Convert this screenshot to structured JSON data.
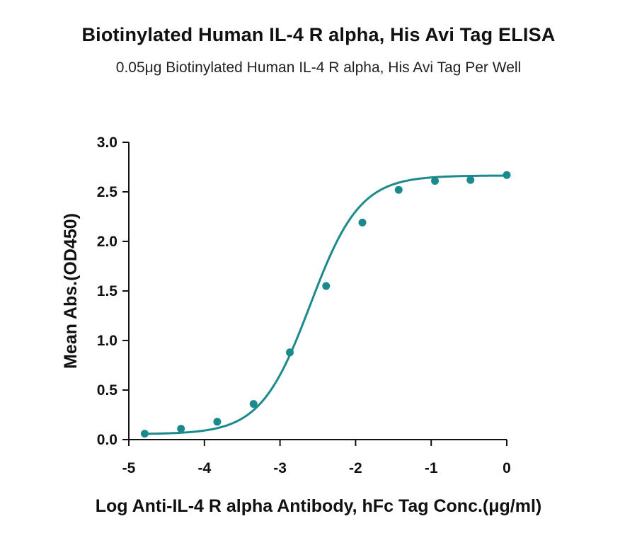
{
  "chart_data": {
    "type": "scatter",
    "title": "Biotinylated Human IL-4 R alpha, His Avi Tag ELISA",
    "subtitle": "0.05μg Biotinylated Human IL-4 R alpha, His Avi Tag Per Well",
    "xlabel": "Log Anti-IL-4 R alpha Antibody, hFc Tag Conc.(μg/ml)",
    "ylabel": "Mean Abs.(OD450)",
    "xlim": [
      -5,
      0
    ],
    "ylim": [
      0,
      3.0
    ],
    "x_ticks": [
      "-5",
      "-4",
      "-3",
      "-2",
      "-1",
      "0"
    ],
    "y_ticks": [
      "0.0",
      "0.5",
      "1.0",
      "1.5",
      "2.0",
      "2.5",
      "3.0"
    ],
    "x_tick_values": [
      -5,
      -4,
      -3,
      -2,
      -1,
      0
    ],
    "y_tick_values": [
      0,
      0.5,
      1.0,
      1.5,
      2.0,
      2.5,
      3.0
    ],
    "series": [
      {
        "x": [
          -4.79,
          -4.31,
          -3.83,
          -3.35,
          -2.87,
          -2.39,
          -1.91,
          -1.43,
          -0.95,
          -0.48,
          0.0
        ],
        "y": [
          0.06,
          0.11,
          0.18,
          0.36,
          0.88,
          1.55,
          2.19,
          2.52,
          2.61,
          2.62,
          2.67
        ]
      }
    ],
    "fit_curve": "sigmoidal",
    "color": "#1b8a8c",
    "grid": false,
    "legend": "none"
  }
}
